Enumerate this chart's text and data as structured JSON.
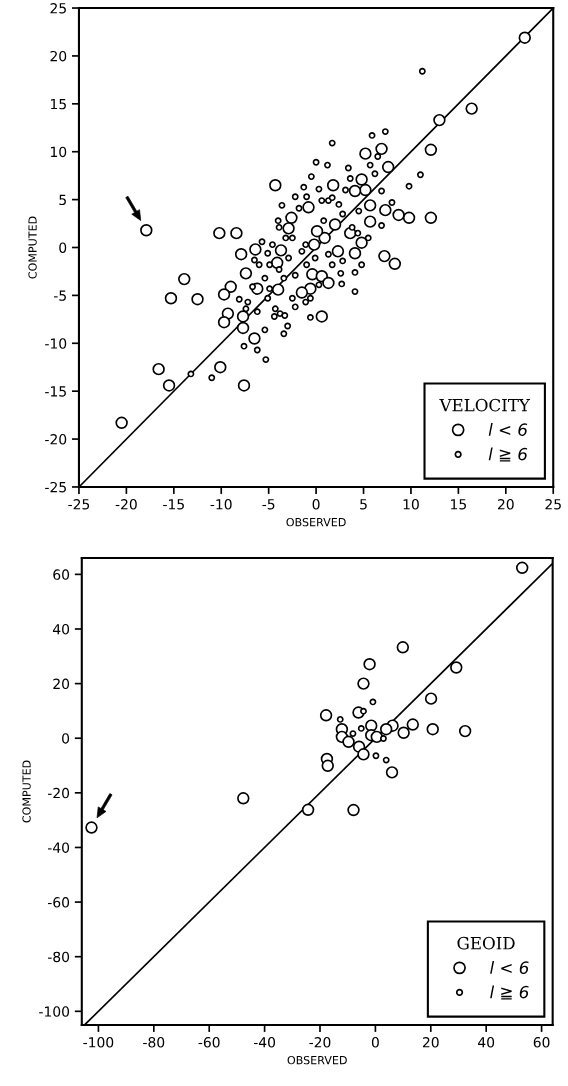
{
  "chart_data": [
    {
      "type": "scatter",
      "xlabel": "OBSERVED",
      "ylabel": "COMPUTED",
      "legend_title": "VELOCITY",
      "legend": "bottom right",
      "marker": "circle",
      "grid": false,
      "xlim": [
        -25,
        25
      ],
      "ylim": [
        -25,
        25
      ],
      "xticks": [
        -25,
        -20,
        -15,
        -10,
        -5,
        0,
        5,
        10,
        15,
        20,
        25
      ],
      "yticks": [
        -25,
        -20,
        -15,
        -10,
        -5,
        0,
        5,
        10,
        15,
        20,
        25
      ],
      "series": [
        {
          "type": "line",
          "marker": "none",
          "color": "#000000",
          "x": [
            -25,
            25
          ],
          "values": [
            -25,
            25
          ]
        },
        {
          "name": "l < 6",
          "color": "#000000",
          "x": [
            22,
            16.4,
            13.0,
            12.1,
            12.1,
            9.8,
            8.7,
            8.3,
            7.2,
            7.6,
            6.9,
            5.2,
            4.8,
            5.2,
            4.1,
            5.7,
            7.3,
            5.7,
            4.8,
            4.1,
            3.6,
            2.0,
            2.3,
            1.8,
            0.9,
            -0.2,
            0.1,
            -0.8,
            -2.6,
            -2.9,
            -3.7,
            -4.1,
            -0.4,
            0.6,
            1.3,
            -0.6,
            -1.5,
            -4.0,
            -6.2,
            -7.4,
            -6.4,
            -7.9,
            -4.3,
            -8.4,
            -10.2,
            -9.0,
            -9.7,
            -9.3,
            -9.7,
            -7.7,
            -7.7,
            -6.5,
            0.6,
            -10.1,
            -7.6,
            -13.9,
            -15.3,
            -12.5,
            -16.6,
            -15.5,
            -20.5,
            -17.9
          ],
          "values": [
            21.9,
            14.5,
            13.3,
            10.2,
            3.1,
            3.1,
            3.4,
            -1.7,
            -0.9,
            8.4,
            10.3,
            9.8,
            7.1,
            6.0,
            5.9,
            4.4,
            3.9,
            2.7,
            0.5,
            -0.6,
            1.5,
            2.4,
            -0.4,
            6.5,
            1.0,
            0.3,
            1.7,
            4.2,
            3.1,
            2.0,
            -0.3,
            -1.6,
            -2.8,
            -3.0,
            -3.7,
            -4.3,
            -4.7,
            -4.4,
            -4.3,
            -2.7,
            -0.2,
            -0.7,
            6.5,
            1.5,
            1.5,
            -4.1,
            -4.9,
            -6.9,
            -7.8,
            -7.2,
            -8.4,
            -9.5,
            -7.2,
            -12.5,
            -14.4,
            -3.3,
            -5.3,
            -5.4,
            -12.7,
            -14.4,
            -18.3,
            1.8
          ]
        },
        {
          "name": "l ≧ 6",
          "color": "#000000",
          "x": [
            11.2,
            5.9,
            7.3,
            1.7,
            0.0,
            1.2,
            3.4,
            5.7,
            6.5,
            6.2,
            11.0,
            9.8,
            -0.5,
            -1.3,
            0.3,
            -2.2,
            -3.6,
            -1.0,
            3.6,
            3.1,
            6.9,
            8.0,
            -1.8,
            1.3,
            2.4,
            2.8,
            6.9,
            4.5,
            -3.9,
            -4.0,
            -5.7,
            -5.1,
            -4.9,
            -6.5,
            -6.0,
            -5.4,
            -6.7,
            -4.9,
            -5.1,
            -8.1,
            -7.2,
            -7.4,
            -6.2,
            -4.3,
            -3.8,
            -4.4,
            -3.3,
            -3.0,
            -3.4,
            -5.4,
            -7.6,
            -6.2,
            -5.3,
            -13.2,
            -11.0,
            -0.6,
            4.1,
            4.1,
            4.8,
            2.7,
            2.6,
            2.8,
            5.5,
            4.4,
            -2.5,
            -2.9,
            -2.2,
            -2.5,
            -2.2,
            -1.1,
            -0.6,
            0.3,
            1.7,
            1.3,
            -1.5,
            -1.1,
            0.8,
            0.6,
            1.7,
            3.8,
            -0.1,
            -1.0,
            -3.4,
            -3.9,
            -3.2,
            -4.6
          ],
          "values": [
            18.4,
            11.7,
            12.1,
            10.9,
            8.9,
            8.6,
            8.3,
            8.6,
            9.5,
            7.7,
            7.6,
            6.4,
            7.4,
            6.3,
            6.1,
            5.3,
            4.4,
            5.3,
            7.2,
            6.0,
            5.9,
            4.7,
            4.1,
            4.9,
            4.5,
            3.5,
            2.3,
            3.8,
            2.1,
            2.8,
            0.6,
            -0.6,
            -1.8,
            -1.3,
            -1.8,
            -3.2,
            -4.1,
            -4.3,
            -5.3,
            -5.4,
            -5.7,
            -6.4,
            -6.7,
            -6.4,
            -6.9,
            -7.2,
            -7.1,
            -8.2,
            -9.0,
            -8.6,
            -10.3,
            -10.7,
            -11.7,
            -13.2,
            -13.6,
            -7.3,
            -4.6,
            -2.6,
            -1.8,
            -3.8,
            -2.7,
            -1.4,
            1.0,
            1.5,
            1.0,
            -1.1,
            -2.9,
            -5.3,
            -6.2,
            -5.7,
            -5.3,
            -3.9,
            -1.8,
            -0.7,
            -0.4,
            0.3,
            2.8,
            4.9,
            5.2,
            2.1,
            -1.1,
            -1.8,
            -3.2,
            -2.3,
            1.0,
            0.3
          ]
        }
      ]
    },
    {
      "type": "scatter",
      "xlabel": "OBSERVED",
      "ylabel": "COMPUTED",
      "legend_title": "GEOID",
      "legend": "bottom right",
      "marker": "circle",
      "grid": false,
      "xlim": [
        -106,
        64
      ],
      "ylim": [
        -105,
        66
      ],
      "xticks": [
        -100,
        -80,
        -60,
        -40,
        -20,
        0,
        20,
        40,
        60
      ],
      "yticks": [
        -100,
        -80,
        -60,
        -40,
        -20,
        0,
        20,
        40,
        60
      ],
      "series": [
        {
          "type": "line",
          "marker": "none",
          "color": "#000000",
          "x": [
            -105,
            64
          ],
          "values": [
            -105,
            64
          ]
        },
        {
          "name": "l < 6",
          "color": "#000000",
          "x": [
            53.0,
            9.9,
            -2.1,
            -4.3,
            29.2,
            20.1,
            20.7,
            32.4,
            13.5,
            10.2,
            6.2,
            3.9,
            -1.5,
            -1.5,
            -6.1,
            -5.9,
            -4.3,
            -12.1,
            -12.1,
            -9.7,
            -17.8,
            -17.5,
            -17.2,
            6.0,
            -24.3,
            -7.9,
            -47.7,
            0.5,
            -102.5
          ],
          "values": [
            62.4,
            33.3,
            27.1,
            20.0,
            25.9,
            14.5,
            3.3,
            2.6,
            5.0,
            2.0,
            4.6,
            3.3,
            4.6,
            1.1,
            9.4,
            -3.1,
            -5.9,
            3.3,
            0.5,
            -1.3,
            8.4,
            -7.6,
            -10.1,
            -12.5,
            -26.2,
            -26.3,
            -22.0,
            0.5,
            -32.7
          ]
        },
        {
          "name": "l ≧ 6",
          "color": "#000000",
          "x": [
            -0.9,
            -12.7,
            -8.1,
            0.2,
            3.9,
            2.9,
            -4.3,
            -5.1
          ],
          "values": [
            13.3,
            6.9,
            1.7,
            -6.4,
            -8.0,
            -0.1,
            9.9,
            3.6
          ]
        }
      ]
    }
  ]
}
